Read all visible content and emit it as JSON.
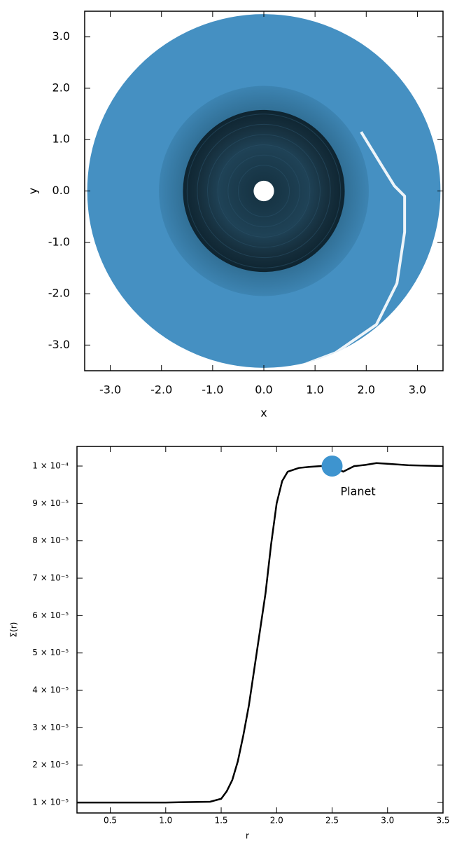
{
  "chart_data": [
    {
      "type": "image",
      "xlabel": "x",
      "ylabel": "y",
      "xlim": [
        -3.5,
        3.5
      ],
      "ylim": [
        -3.5,
        3.5
      ],
      "xticks": [
        {
          "value": -3,
          "label": "-3.0"
        },
        {
          "value": -2,
          "label": "-2.0"
        },
        {
          "value": -1,
          "label": "-1.0"
        },
        {
          "value": 0,
          "label": "0.0"
        },
        {
          "value": 1,
          "label": "1.0"
        },
        {
          "value": 2,
          "label": "2.0"
        },
        {
          "value": 3,
          "label": "3.0"
        }
      ],
      "yticks": [
        {
          "value": -3,
          "label": "-3.0"
        },
        {
          "value": -2,
          "label": "-2.0"
        },
        {
          "value": -1,
          "label": "-1.0"
        },
        {
          "value": 0,
          "label": "0.0"
        },
        {
          "value": 1,
          "label": "1.0"
        },
        {
          "value": 2,
          "label": "2.0"
        },
        {
          "value": 3,
          "label": "3.0"
        }
      ]
    },
    {
      "type": "line",
      "xlabel": "r",
      "ylabel": "Σ(r)",
      "color": "#000000",
      "x": [
        0.2,
        0.5,
        1.0,
        1.4,
        1.5,
        1.55,
        1.6,
        1.65,
        1.7,
        1.75,
        1.8,
        1.85,
        1.9,
        1.95,
        2.0,
        2.05,
        2.1,
        2.2,
        2.3,
        2.4,
        2.5,
        2.6,
        2.7,
        2.8,
        2.9,
        3.0,
        3.2,
        3.5
      ],
      "values": [
        1e-05,
        1e-05,
        1e-05,
        1.02e-05,
        1.1e-05,
        1.3e-05,
        1.6e-05,
        2.1e-05,
        2.8e-05,
        3.6e-05,
        4.6e-05,
        5.6e-05,
        6.6e-05,
        7.9e-05,
        9e-05,
        9.6e-05,
        9.85e-05,
        9.95e-05,
        9.98e-05,
        0.0001,
        0.0001,
        9.85e-05,
        0.0001,
        0.0001003,
        0.0001008,
        0.0001006,
        0.0001002,
        0.0001
      ],
      "xlim": [
        0.2,
        3.5
      ],
      "ylim": [
        7.2e-06,
        0.00010525
      ],
      "xticks": [
        0.5,
        {
          "value": 1,
          "label": "1.0"
        },
        1.5,
        {
          "value": 2,
          "label": "2.0"
        },
        2.5,
        {
          "value": 3,
          "label": "3.0"
        },
        3.5
      ],
      "yticks": [
        {
          "value": 1e-05,
          "label": "1 × 10⁻⁵"
        },
        {
          "value": 2e-05,
          "label": "2 × 10⁻⁵"
        },
        {
          "value": 3e-05,
          "label": "3 × 10⁻⁵"
        },
        {
          "value": 4e-05,
          "label": "4 × 10⁻⁵"
        },
        {
          "value": 5e-05,
          "label": "5 × 10⁻⁵"
        },
        {
          "value": 6e-05,
          "label": "6 × 10⁻⁵"
        },
        {
          "value": 7e-05,
          "label": "7 × 10⁻⁵"
        },
        {
          "value": 8e-05,
          "label": "8 × 10⁻⁵"
        },
        {
          "value": 9e-05,
          "label": "9 × 10⁻⁵"
        },
        {
          "value": 0.0001,
          "label": "1 × 10⁻⁴"
        }
      ],
      "annotations": [
        {
          "text": "Planet",
          "x": 2.5,
          "y": 0.0001,
          "color": "#3e94cf"
        }
      ]
    }
  ]
}
